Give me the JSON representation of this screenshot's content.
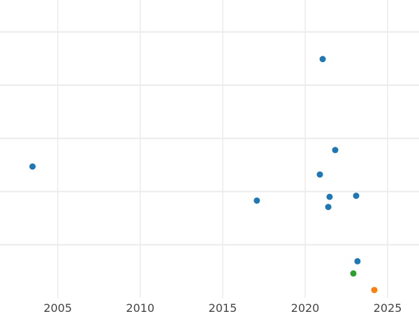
{
  "chart_data": {
    "type": "scatter",
    "title": "",
    "xlabel": "",
    "ylabel": "",
    "xlim": [
      2001.5,
      2026.9
    ],
    "ylim": [
      0.0,
      5.6
    ],
    "grid": true,
    "x_ticks": [
      2005,
      2010,
      2015,
      2020,
      2025
    ],
    "x_tick_labels": [
      "2005",
      "2010",
      "2015",
      "2020",
      "2025"
    ],
    "y_gridlines": [
      1,
      2,
      3,
      4,
      5
    ],
    "colors": {
      "blue": "#1f77b4",
      "orange": "#ff7f0e",
      "green": "#2ca02c",
      "grid": "#ebebeb",
      "text": "#444444"
    },
    "points": [
      {
        "x": 2021.06,
        "y": 4.49,
        "color": "#1f77b4"
      },
      {
        "x": 2003.47,
        "y": 2.47,
        "color": "#1f77b4"
      },
      {
        "x": 2021.82,
        "y": 2.78,
        "color": "#1f77b4"
      },
      {
        "x": 2020.89,
        "y": 2.32,
        "color": "#1f77b4"
      },
      {
        "x": 2017.07,
        "y": 1.83,
        "color": "#1f77b4"
      },
      {
        "x": 2021.48,
        "y": 1.9,
        "color": "#1f77b4"
      },
      {
        "x": 2023.09,
        "y": 1.92,
        "color": "#1f77b4"
      },
      {
        "x": 2021.4,
        "y": 1.71,
        "color": "#1f77b4"
      },
      {
        "x": 2023.17,
        "y": 0.69,
        "color": "#1f77b4"
      },
      {
        "x": 2022.92,
        "y": 0.46,
        "color": "#2ca02c"
      },
      {
        "x": 2024.19,
        "y": 0.15,
        "color": "#ff7f0e"
      }
    ]
  }
}
